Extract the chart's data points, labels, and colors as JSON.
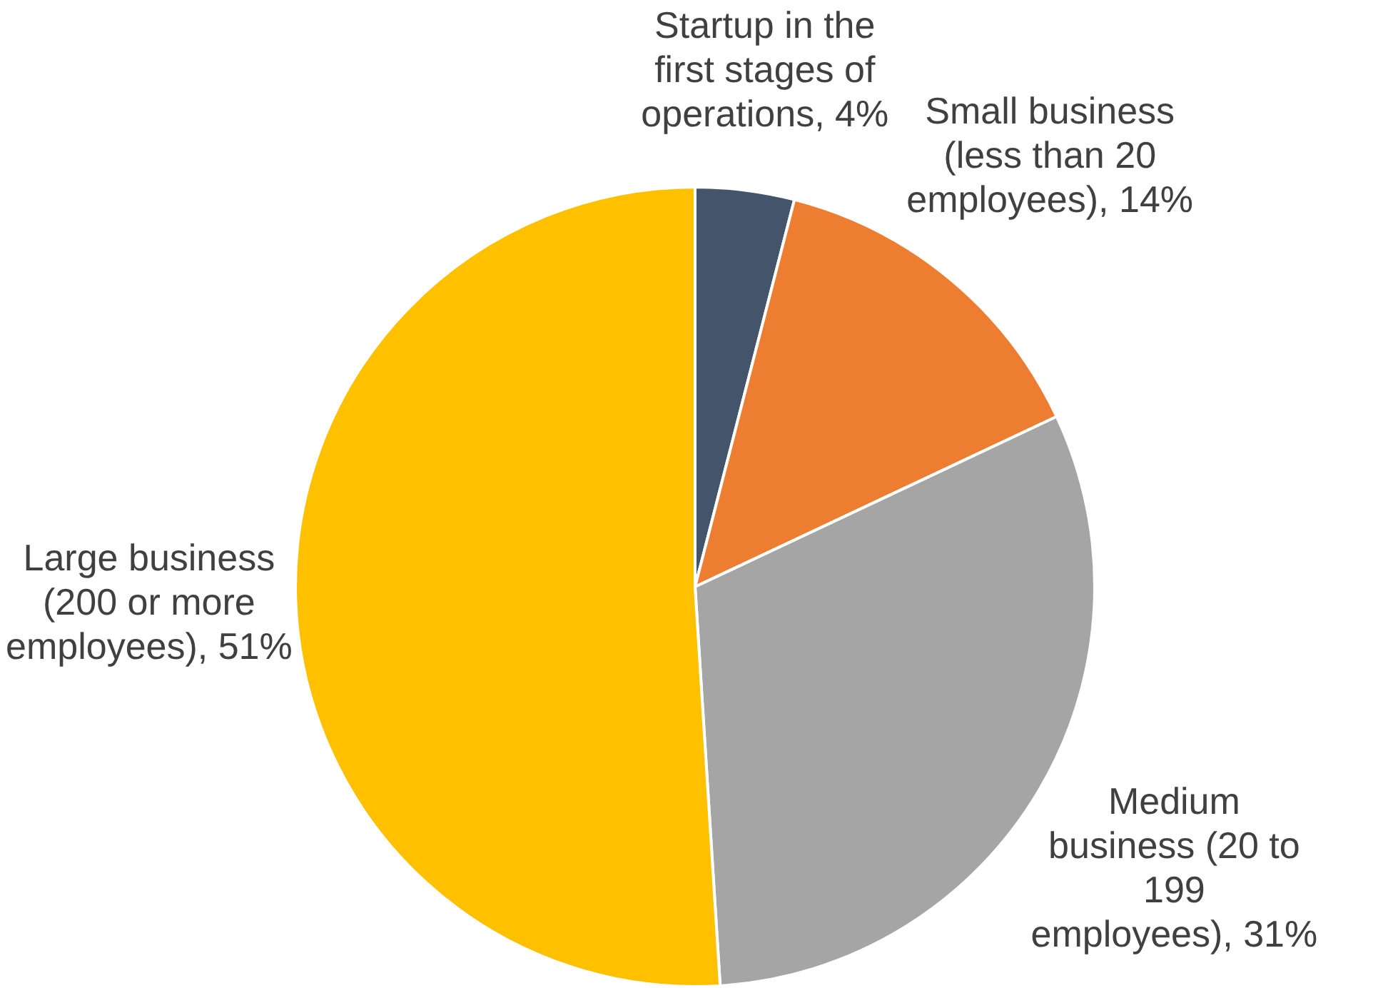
{
  "chart_data": {
    "type": "pie",
    "categories": [
      "Startup in the first stages of operations",
      "Small business (less than 20 employees)",
      "Medium business (20 to 199 employees)",
      "Large business (200 or more employees)"
    ],
    "values": [
      4,
      14,
      31,
      51
    ],
    "value_labels": [
      "4%",
      "14%",
      "31%",
      "51%"
    ],
    "colors": [
      "#44546a",
      "#ed7d31",
      "#a5a5a5",
      "#ffc000"
    ],
    "legend": false
  }
}
